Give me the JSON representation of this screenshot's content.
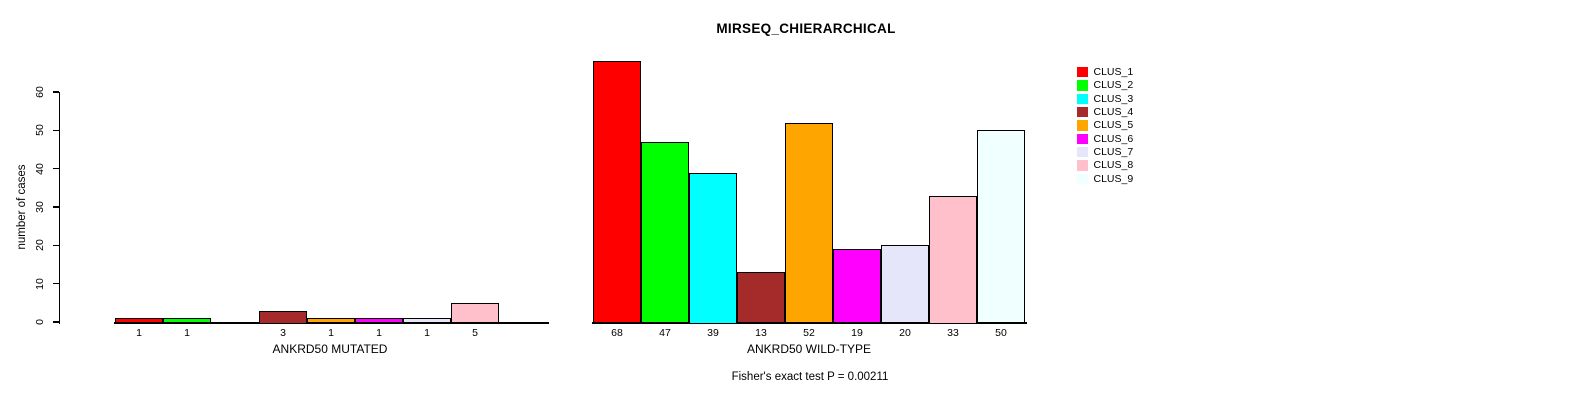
{
  "figure": {
    "background": "#ffffff",
    "title": "MIRSEQ_CHIERARCHICAL",
    "caption": "Fisher's exact test P = 0.00211"
  },
  "chart_data": {
    "type": "bar",
    "title": "MIRSEQ_CHIERARCHICAL",
    "ylabel": "number of cases",
    "yticks": [
      0,
      10,
      20,
      30,
      40,
      50,
      60
    ],
    "ylim": [
      0,
      60
    ],
    "grid": false,
    "legend_position": "right",
    "categories": [
      "CLUS_1",
      "CLUS_2",
      "CLUS_3",
      "CLUS_4",
      "CLUS_5",
      "CLUS_6",
      "CLUS_7",
      "CLUS_8",
      "CLUS_9"
    ],
    "colors": [
      "#FF0000",
      "#00FF00",
      "#00FFFF",
      "#A52A2A",
      "#FFA500",
      "#FF00FF",
      "#E6E6FA",
      "#FFC0CB",
      "#F0FFFF"
    ],
    "bar_border_color": "#000000",
    "panels": [
      {
        "xlabel": "ANKRD50 MUTATED",
        "values": [
          1,
          1,
          0,
          3,
          1,
          1,
          1,
          5,
          0
        ],
        "bar_labels": [
          "1",
          "1",
          "",
          "3",
          "1",
          "1",
          "1",
          "5",
          ""
        ]
      },
      {
        "xlabel": "ANKRD50 WILD-TYPE",
        "values": [
          68,
          47,
          39,
          13,
          52,
          19,
          20,
          33,
          50
        ],
        "bar_labels": [
          "68",
          "47",
          "39",
          "13",
          "52",
          "19",
          "20",
          "33",
          "50"
        ]
      }
    ],
    "annotation": "Fisher's exact test P = 0.00211"
  }
}
